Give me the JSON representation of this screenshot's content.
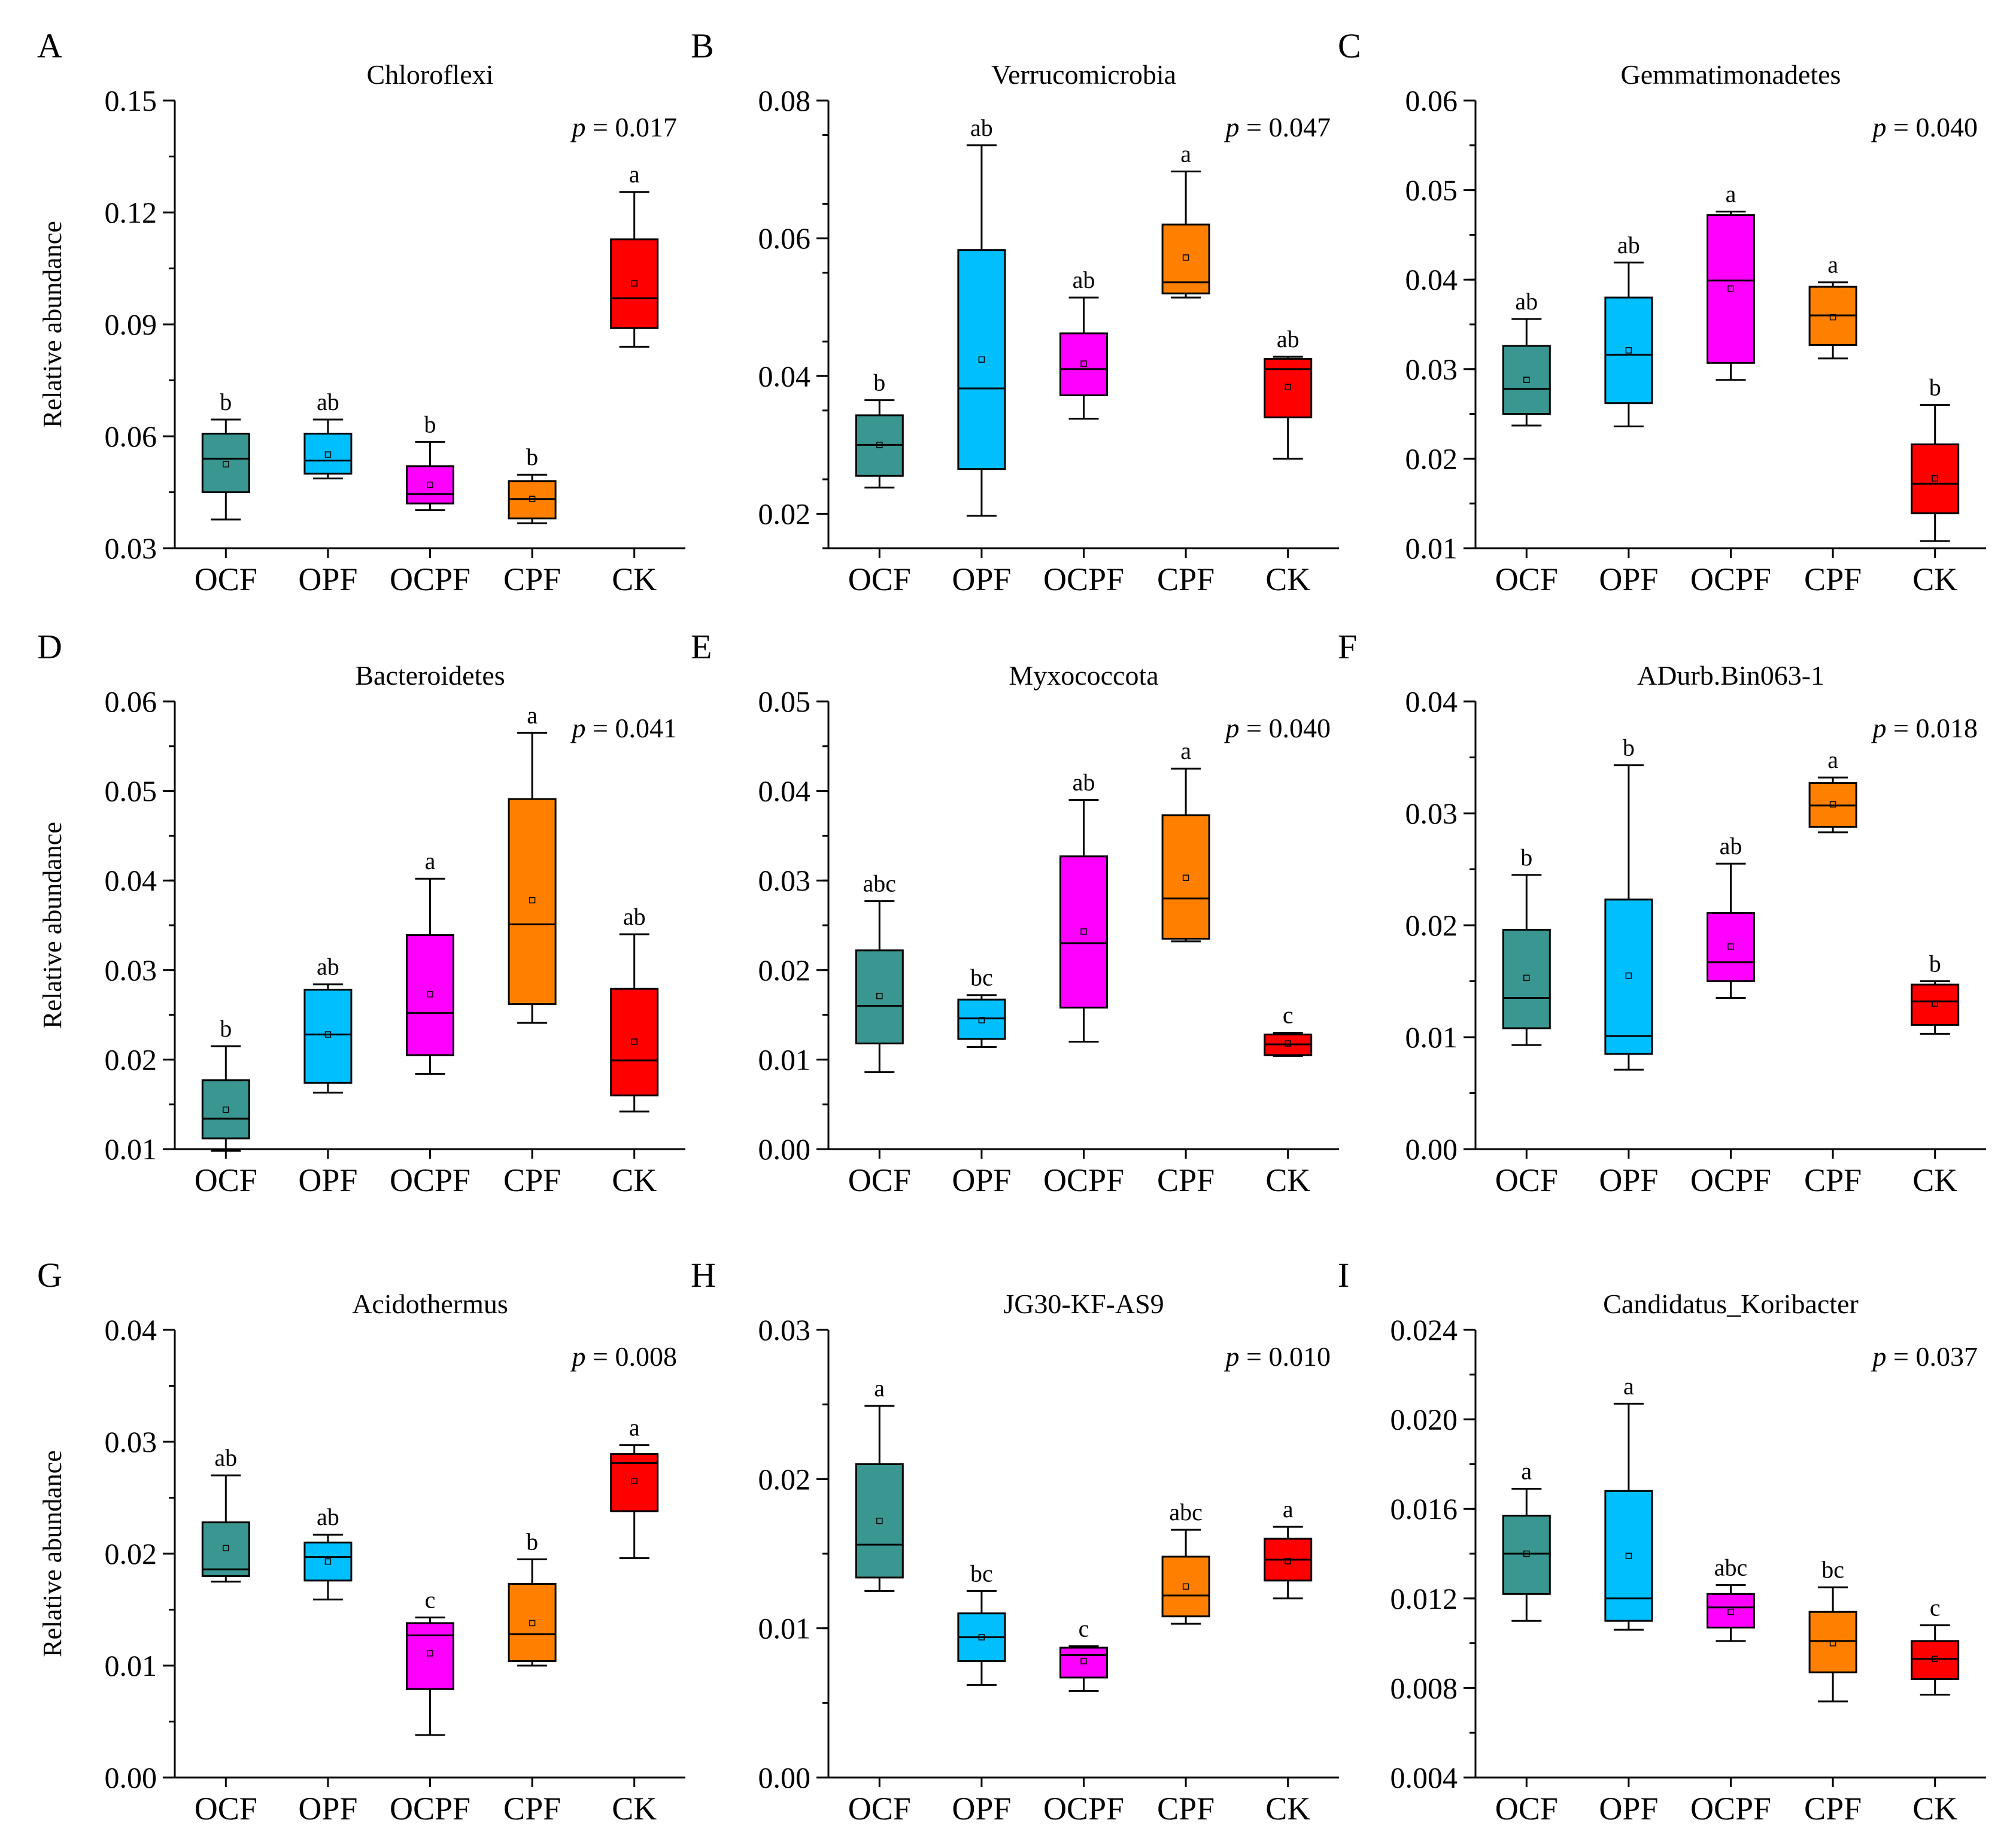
{
  "figure": {
    "y_label": "Relative abundance",
    "x_categories": [
      "OCF",
      "OPF",
      "OCPF",
      "CPF",
      "CK"
    ],
    "group_colors": [
      "#3a9690",
      "#00bfff",
      "#ff00ff",
      "#ff8000",
      "#ff0000"
    ]
  },
  "chart_data": [
    {
      "panel": "A",
      "type": "box",
      "title": "Chloroflexi",
      "p_label": "p",
      "p_value": "= 0.017",
      "ylim": [
        0.03,
        0.15
      ],
      "yticks": [
        "0.03",
        "0.06",
        "0.09",
        "0.12",
        "0.15"
      ],
      "minor_step": 0.015,
      "boxes": [
        {
          "group": "OCF",
          "whisker_low": 0.0377,
          "q1": 0.045,
          "median": 0.054,
          "q3": 0.0607,
          "whisker_high": 0.0645,
          "mean": 0.0525,
          "letter": "b"
        },
        {
          "group": "OPF",
          "whisker_low": 0.0487,
          "q1": 0.05,
          "median": 0.0535,
          "q3": 0.0607,
          "whisker_high": 0.0645,
          "mean": 0.0551,
          "letter": "ab"
        },
        {
          "group": "OCPF",
          "whisker_low": 0.0402,
          "q1": 0.042,
          "median": 0.0445,
          "q3": 0.052,
          "whisker_high": 0.0585,
          "mean": 0.047,
          "letter": "b"
        },
        {
          "group": "CPF",
          "whisker_low": 0.0367,
          "q1": 0.038,
          "median": 0.0432,
          "q3": 0.048,
          "whisker_high": 0.0497,
          "mean": 0.0432,
          "letter": "b"
        },
        {
          "group": "CK",
          "whisker_low": 0.084,
          "q1": 0.089,
          "median": 0.097,
          "q3": 0.1128,
          "whisker_high": 0.1255,
          "mean": 0.101,
          "letter": "a"
        }
      ]
    },
    {
      "panel": "B",
      "type": "box",
      "title": "Verrucomicrobia",
      "p_label": "p",
      "p_value": "= 0.047",
      "ylim": [
        0.015,
        0.08
      ],
      "yticks": [
        "0.02",
        "0.04",
        "0.06",
        "0.08"
      ],
      "minor_step": 0.01,
      "boxes": [
        {
          "group": "OCF",
          "whisker_low": 0.0238,
          "q1": 0.0255,
          "median": 0.03,
          "q3": 0.0343,
          "whisker_high": 0.0365,
          "mean": 0.03,
          "letter": "b"
        },
        {
          "group": "OPF",
          "whisker_low": 0.0197,
          "q1": 0.0265,
          "median": 0.0382,
          "q3": 0.0583,
          "whisker_high": 0.0735,
          "mean": 0.0424,
          "letter": "ab"
        },
        {
          "group": "OCPF",
          "whisker_low": 0.0338,
          "q1": 0.0372,
          "median": 0.041,
          "q3": 0.0462,
          "whisker_high": 0.0514,
          "mean": 0.0418,
          "letter": "ab"
        },
        {
          "group": "CPF",
          "whisker_low": 0.0514,
          "q1": 0.052,
          "median": 0.0536,
          "q3": 0.062,
          "whisker_high": 0.0697,
          "mean": 0.0572,
          "letter": "a"
        },
        {
          "group": "CK",
          "whisker_low": 0.028,
          "q1": 0.034,
          "median": 0.041,
          "q3": 0.0425,
          "whisker_high": 0.0428,
          "mean": 0.0384,
          "letter": "ab"
        }
      ]
    },
    {
      "panel": "C",
      "type": "box",
      "title": "Gemmatimonadetes",
      "p_label": "p",
      "p_value": "= 0.040",
      "ylim": [
        0.01,
        0.06
      ],
      "yticks": [
        "0.01",
        "0.02",
        "0.03",
        "0.04",
        "0.05",
        "0.06"
      ],
      "minor_step": 0.005,
      "boxes": [
        {
          "group": "OCF",
          "whisker_low": 0.0237,
          "q1": 0.025,
          "median": 0.0278,
          "q3": 0.0326,
          "whisker_high": 0.0356,
          "mean": 0.0288,
          "letter": "ab"
        },
        {
          "group": "OPF",
          "whisker_low": 0.0236,
          "q1": 0.0262,
          "median": 0.0316,
          "q3": 0.038,
          "whisker_high": 0.0419,
          "mean": 0.0321,
          "letter": "ab"
        },
        {
          "group": "OCPF",
          "whisker_low": 0.0288,
          "q1": 0.0307,
          "median": 0.0399,
          "q3": 0.0472,
          "whisker_high": 0.0476,
          "mean": 0.039,
          "letter": "a"
        },
        {
          "group": "CPF",
          "whisker_low": 0.0312,
          "q1": 0.0327,
          "median": 0.036,
          "q3": 0.0392,
          "whisker_high": 0.0397,
          "mean": 0.0358,
          "letter": "a"
        },
        {
          "group": "CK",
          "whisker_low": 0.0108,
          "q1": 0.0139,
          "median": 0.0172,
          "q3": 0.0216,
          "whisker_high": 0.026,
          "mean": 0.0178,
          "letter": "b"
        }
      ]
    },
    {
      "panel": "D",
      "type": "box",
      "title": "Bacteroidetes",
      "p_label": "p",
      "p_value": "= 0.041",
      "ylim": [
        0.01,
        0.06
      ],
      "yticks": [
        "0.01",
        "0.02",
        "0.03",
        "0.04",
        "0.05",
        "0.06"
      ],
      "minor_step": 0.005,
      "boxes": [
        {
          "group": "OCF",
          "whisker_low": 0.0098,
          "q1": 0.0112,
          "median": 0.0134,
          "q3": 0.0177,
          "whisker_high": 0.0215,
          "mean": 0.0144,
          "letter": "b"
        },
        {
          "group": "OPF",
          "whisker_low": 0.0163,
          "q1": 0.0174,
          "median": 0.0228,
          "q3": 0.0278,
          "whisker_high": 0.0284,
          "mean": 0.0228,
          "letter": "ab"
        },
        {
          "group": "OCPF",
          "whisker_low": 0.0184,
          "q1": 0.0205,
          "median": 0.0252,
          "q3": 0.0339,
          "whisker_high": 0.0402,
          "mean": 0.0273,
          "letter": "a"
        },
        {
          "group": "CPF",
          "whisker_low": 0.0241,
          "q1": 0.0262,
          "median": 0.0351,
          "q3": 0.0491,
          "whisker_high": 0.0565,
          "mean": 0.0378,
          "letter": "a"
        },
        {
          "group": "CK",
          "whisker_low": 0.0142,
          "q1": 0.016,
          "median": 0.0199,
          "q3": 0.0279,
          "whisker_high": 0.034,
          "mean": 0.022,
          "letter": "ab"
        }
      ]
    },
    {
      "panel": "E",
      "type": "box",
      "title": "Myxococcota",
      "p_label": "p",
      "p_value": "= 0.040",
      "ylim": [
        0.0,
        0.05
      ],
      "yticks": [
        "0.00",
        "0.01",
        "0.02",
        "0.03",
        "0.04",
        "0.05"
      ],
      "minor_step": 0.005,
      "boxes": [
        {
          "group": "OCF",
          "whisker_low": 0.0086,
          "q1": 0.0118,
          "median": 0.016,
          "q3": 0.0222,
          "whisker_high": 0.0277,
          "mean": 0.0171,
          "letter": "abc"
        },
        {
          "group": "OPF",
          "whisker_low": 0.0114,
          "q1": 0.0123,
          "median": 0.0146,
          "q3": 0.0167,
          "whisker_high": 0.0172,
          "mean": 0.0144,
          "letter": "bc"
        },
        {
          "group": "OCPF",
          "whisker_low": 0.012,
          "q1": 0.0158,
          "median": 0.023,
          "q3": 0.0327,
          "whisker_high": 0.039,
          "mean": 0.0243,
          "letter": "ab"
        },
        {
          "group": "CPF",
          "whisker_low": 0.0232,
          "q1": 0.0235,
          "median": 0.028,
          "q3": 0.0373,
          "whisker_high": 0.0425,
          "mean": 0.0303,
          "letter": "a"
        },
        {
          "group": "CK",
          "whisker_low": 0.0104,
          "q1": 0.0105,
          "median": 0.0117,
          "q3": 0.0128,
          "whisker_high": 0.013,
          "mean": 0.0118,
          "letter": "c"
        }
      ]
    },
    {
      "panel": "F",
      "type": "box",
      "title": "ADurb.Bin063-1",
      "p_label": "p",
      "p_value": "= 0.018",
      "ylim": [
        0.0,
        0.04
      ],
      "yticks": [
        "0.00",
        "0.01",
        "0.02",
        "0.03",
        "0.04"
      ],
      "minor_step": 0.005,
      "boxes": [
        {
          "group": "OCF",
          "whisker_low": 0.0093,
          "q1": 0.0108,
          "median": 0.0135,
          "q3": 0.0196,
          "whisker_high": 0.0245,
          "mean": 0.0153,
          "letter": "b"
        },
        {
          "group": "OPF",
          "whisker_low": 0.0071,
          "q1": 0.0085,
          "median": 0.0101,
          "q3": 0.0223,
          "whisker_high": 0.0343,
          "mean": 0.0155,
          "letter": "b"
        },
        {
          "group": "OCPF",
          "whisker_low": 0.0135,
          "q1": 0.015,
          "median": 0.0167,
          "q3": 0.0211,
          "whisker_high": 0.0255,
          "mean": 0.0181,
          "letter": "ab"
        },
        {
          "group": "CPF",
          "whisker_low": 0.0283,
          "q1": 0.0288,
          "median": 0.0307,
          "q3": 0.0327,
          "whisker_high": 0.0332,
          "mean": 0.0308,
          "letter": "a"
        },
        {
          "group": "CK",
          "whisker_low": 0.0103,
          "q1": 0.0111,
          "median": 0.0132,
          "q3": 0.0147,
          "whisker_high": 0.015,
          "mean": 0.013,
          "letter": "b"
        }
      ]
    },
    {
      "panel": "G",
      "type": "box",
      "title": "Acidothermus",
      "p_label": "p",
      "p_value": "= 0.008",
      "ylim": [
        0.0,
        0.04
      ],
      "yticks": [
        "0.00",
        "0.01",
        "0.02",
        "0.03",
        "0.04"
      ],
      "minor_step": 0.005,
      "boxes": [
        {
          "group": "OCF",
          "whisker_low": 0.0175,
          "q1": 0.018,
          "median": 0.0186,
          "q3": 0.0228,
          "whisker_high": 0.027,
          "mean": 0.0205,
          "letter": "ab"
        },
        {
          "group": "OPF",
          "whisker_low": 0.0159,
          "q1": 0.0176,
          "median": 0.0197,
          "q3": 0.021,
          "whisker_high": 0.0217,
          "mean": 0.0193,
          "letter": "ab"
        },
        {
          "group": "OCPF",
          "whisker_low": 0.0038,
          "q1": 0.0079,
          "median": 0.0127,
          "q3": 0.0138,
          "whisker_high": 0.0143,
          "mean": 0.0111,
          "letter": "c"
        },
        {
          "group": "CPF",
          "whisker_low": 0.01,
          "q1": 0.0104,
          "median": 0.0128,
          "q3": 0.0173,
          "whisker_high": 0.0195,
          "mean": 0.0138,
          "letter": "b"
        },
        {
          "group": "CK",
          "whisker_low": 0.0196,
          "q1": 0.0238,
          "median": 0.0281,
          "q3": 0.0289,
          "whisker_high": 0.0297,
          "mean": 0.0265,
          "letter": "a"
        }
      ]
    },
    {
      "panel": "H",
      "type": "box",
      "title": "JG30-KF-AS9",
      "p_label": "p",
      "p_value": "= 0.010",
      "ylim": [
        0.0,
        0.03
      ],
      "yticks": [
        "0.00",
        "0.01",
        "0.02",
        "0.03"
      ],
      "minor_step": 0.005,
      "boxes": [
        {
          "group": "OCF",
          "whisker_low": 0.0125,
          "q1": 0.0134,
          "median": 0.0156,
          "q3": 0.021,
          "whisker_high": 0.0249,
          "mean": 0.0172,
          "letter": "a"
        },
        {
          "group": "OPF",
          "whisker_low": 0.0062,
          "q1": 0.0078,
          "median": 0.0094,
          "q3": 0.011,
          "whisker_high": 0.0125,
          "mean": 0.0094,
          "letter": "bc"
        },
        {
          "group": "OCPF",
          "whisker_low": 0.0058,
          "q1": 0.0067,
          "median": 0.0082,
          "q3": 0.0087,
          "whisker_high": 0.0088,
          "mean": 0.0078,
          "letter": "c"
        },
        {
          "group": "CPF",
          "whisker_low": 0.0103,
          "q1": 0.0108,
          "median": 0.0122,
          "q3": 0.0148,
          "whisker_high": 0.0166,
          "mean": 0.0128,
          "letter": "abc"
        },
        {
          "group": "CK",
          "whisker_low": 0.012,
          "q1": 0.0132,
          "median": 0.0146,
          "q3": 0.016,
          "whisker_high": 0.0168,
          "mean": 0.0145,
          "letter": "a"
        }
      ]
    },
    {
      "panel": "I",
      "type": "box",
      "title": "Candidatus_Koribacter",
      "p_label": "p",
      "p_value": "= 0.037",
      "ylim": [
        0.004,
        0.024
      ],
      "yticks": [
        "0.004",
        "0.008",
        "0.012",
        "0.016",
        "0.020",
        "0.024"
      ],
      "minor_step": 0.002,
      "boxes": [
        {
          "group": "OCF",
          "whisker_low": 0.011,
          "q1": 0.0122,
          "median": 0.014,
          "q3": 0.0157,
          "whisker_high": 0.0169,
          "mean": 0.014,
          "letter": "a"
        },
        {
          "group": "OPF",
          "whisker_low": 0.0106,
          "q1": 0.011,
          "median": 0.012,
          "q3": 0.0168,
          "whisker_high": 0.0207,
          "mean": 0.0139,
          "letter": "a"
        },
        {
          "group": "OCPF",
          "whisker_low": 0.0101,
          "q1": 0.0107,
          "median": 0.0116,
          "q3": 0.0122,
          "whisker_high": 0.0126,
          "mean": 0.0114,
          "letter": "abc"
        },
        {
          "group": "CPF",
          "whisker_low": 0.0074,
          "q1": 0.0087,
          "median": 0.0101,
          "q3": 0.0114,
          "whisker_high": 0.0125,
          "mean": 0.01,
          "letter": "bc"
        },
        {
          "group": "CK",
          "whisker_low": 0.0077,
          "q1": 0.0084,
          "median": 0.0093,
          "q3": 0.0101,
          "whisker_high": 0.0108,
          "mean": 0.0093,
          "letter": "c"
        }
      ]
    }
  ]
}
